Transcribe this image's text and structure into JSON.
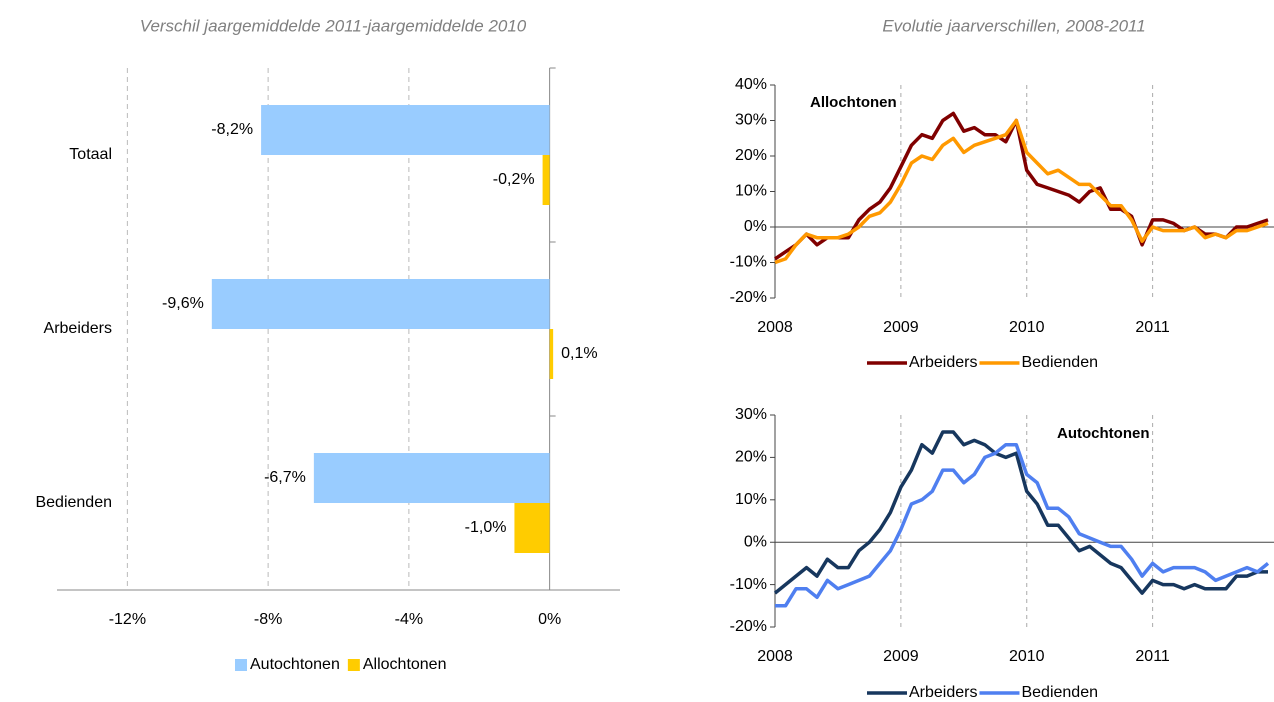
{
  "chart_data": [
    {
      "type": "bar",
      "orientation": "horizontal",
      "title": "Verschil jaargemiddelde 2011-jaargemiddelde 2010",
      "categories": [
        "Totaal",
        "Arbeiders",
        "Bedienden"
      ],
      "series": [
        {
          "name": "Autochtonen",
          "color": "#99ccff",
          "values": [
            -8.2,
            -9.6,
            -6.7
          ],
          "value_labels": [
            "-8,2%",
            "-9,6%",
            "-6,7%"
          ]
        },
        {
          "name": "Allochtonen",
          "color": "#ffcc00",
          "values": [
            -0.2,
            0.1,
            -1.0
          ],
          "value_labels": [
            "-0,2%",
            "0,1%",
            "-1,0%"
          ]
        }
      ],
      "xlim": [
        -14,
        2
      ],
      "xticks": [
        {
          "value": -12,
          "label": "-12%"
        },
        {
          "value": -8,
          "label": "-8%"
        },
        {
          "value": -4,
          "label": "-4%"
        },
        {
          "value": 0,
          "label": "0%"
        }
      ],
      "grid": true,
      "legend": "bottom"
    },
    {
      "type": "line",
      "title": "Evolutie jaarverschillen, 2008-2011",
      "annotation": "Allochtonen",
      "categories": [
        "2008",
        null,
        null,
        null,
        null,
        null,
        null,
        null,
        null,
        null,
        null,
        null,
        "2009",
        null,
        null,
        null,
        null,
        null,
        null,
        null,
        null,
        null,
        null,
        null,
        "2010",
        null,
        null,
        null,
        null,
        null,
        null,
        null,
        null,
        null,
        null,
        null,
        "2011",
        null,
        null,
        null,
        null,
        null,
        null,
        null,
        null,
        null,
        null,
        null
      ],
      "series": [
        {
          "name": "Arbeiders",
          "color": "#800000",
          "values": [
            -9,
            -7,
            -5,
            -2,
            -5,
            -3,
            -3,
            -3,
            2,
            5,
            7,
            11,
            17,
            23,
            26,
            25,
            30,
            32,
            27,
            28,
            26,
            26,
            24,
            30,
            16,
            12,
            11,
            10,
            9,
            7,
            10,
            11,
            5,
            5,
            3,
            -5,
            2,
            2,
            1,
            -1,
            0,
            -2,
            -2,
            -3,
            0,
            0,
            1,
            2
          ]
        },
        {
          "name": "Bedienden",
          "color": "#ff9900",
          "values": [
            -10,
            -9,
            -5,
            -2,
            -3,
            -3,
            -3,
            -2,
            0,
            3,
            4,
            7,
            12,
            18,
            20,
            19,
            23,
            25,
            21,
            23,
            24,
            25,
            26,
            30,
            21,
            18,
            15,
            16,
            14,
            12,
            12,
            9,
            6,
            6,
            2,
            -4,
            0,
            -1,
            -1,
            -1,
            0,
            -3,
            -2,
            -3,
            -1,
            -1,
            0,
            1
          ]
        }
      ],
      "ylim": [
        -20,
        40
      ],
      "yticks": [
        {
          "value": -20,
          "label": "-20%"
        },
        {
          "value": -10,
          "label": "-10%"
        },
        {
          "value": 0,
          "label": "0%"
        },
        {
          "value": 10,
          "label": "10%"
        },
        {
          "value": 20,
          "label": "20%"
        },
        {
          "value": 30,
          "label": "30%"
        },
        {
          "value": 40,
          "label": "40%"
        }
      ],
      "grid": true,
      "legend": "bottom"
    },
    {
      "type": "line",
      "annotation": "Autochtonen",
      "categories": [
        "2008",
        null,
        null,
        null,
        null,
        null,
        null,
        null,
        null,
        null,
        null,
        null,
        "2009",
        null,
        null,
        null,
        null,
        null,
        null,
        null,
        null,
        null,
        null,
        null,
        "2010",
        null,
        null,
        null,
        null,
        null,
        null,
        null,
        null,
        null,
        null,
        null,
        "2011",
        null,
        null,
        null,
        null,
        null,
        null,
        null,
        null,
        null,
        null,
        null
      ],
      "series": [
        {
          "name": "Arbeiders",
          "color": "#17375e",
          "values": [
            -12,
            -10,
            -8,
            -6,
            -8,
            -4,
            -6,
            -6,
            -2,
            0,
            3,
            7,
            13,
            17,
            23,
            21,
            26,
            26,
            23,
            24,
            23,
            21,
            20,
            21,
            12,
            9,
            4,
            4,
            1,
            -2,
            -1,
            -3,
            -5,
            -6,
            -9,
            -12,
            -9,
            -10,
            -10,
            -11,
            -10,
            -11,
            -11,
            -11,
            -8,
            -8,
            -7,
            -7
          ]
        },
        {
          "name": "Bedienden",
          "color": "#4f7ff0",
          "values": [
            -15,
            -15,
            -11,
            -11,
            -13,
            -9,
            -11,
            -10,
            -9,
            -8,
            -5,
            -2,
            3,
            9,
            10,
            12,
            17,
            17,
            14,
            16,
            20,
            21,
            23,
            23,
            16,
            14,
            8,
            8,
            6,
            2,
            1,
            0,
            -1,
            -1,
            -4,
            -8,
            -5,
            -7,
            -6,
            -6,
            -6,
            -7,
            -9,
            -8,
            -7,
            -6,
            -7,
            -5
          ]
        }
      ],
      "ylim": [
        -20,
        30
      ],
      "yticks": [
        {
          "value": -20,
          "label": "-20%"
        },
        {
          "value": -10,
          "label": "-10%"
        },
        {
          "value": 0,
          "label": "0%"
        },
        {
          "value": 10,
          "label": "10%"
        },
        {
          "value": 20,
          "label": "20%"
        },
        {
          "value": 30,
          "label": "30%"
        }
      ],
      "grid": true,
      "legend": "bottom"
    }
  ]
}
